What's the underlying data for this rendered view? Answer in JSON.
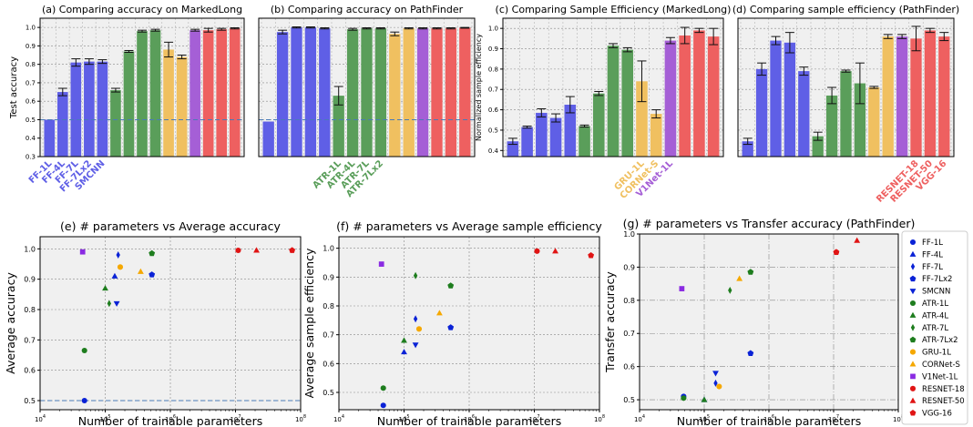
{
  "chart_data": [
    {
      "type": "bar",
      "title": "(a) Comparing accuracy on MarkedLong",
      "ylabel": "Test accuracy",
      "ylim": [
        0.3,
        1.05
      ],
      "yticks": [
        0.3,
        0.4,
        0.5,
        0.6,
        0.7,
        0.8,
        0.9,
        1.0
      ],
      "ytick_labels": [
        "0.3",
        "0.4",
        "0.5",
        "0.6",
        "0.7",
        "0.8",
        "0.9",
        "1.0"
      ],
      "reference_line": 0.5,
      "grid": true,
      "bars": [
        {
          "value": 0.5,
          "err": 0.0,
          "group": "FF"
        },
        {
          "value": 0.65,
          "err": 0.02,
          "group": "FF"
        },
        {
          "value": 0.81,
          "err": 0.02,
          "group": "FF"
        },
        {
          "value": 0.815,
          "err": 0.015,
          "group": "FF"
        },
        {
          "value": 0.815,
          "err": 0.01,
          "group": "FF"
        },
        {
          "value": 0.66,
          "err": 0.01,
          "group": "ATR"
        },
        {
          "value": 0.87,
          "err": 0.005,
          "group": "ATR"
        },
        {
          "value": 0.98,
          "err": 0.005,
          "group": "ATR"
        },
        {
          "value": 0.985,
          "err": 0.005,
          "group": "ATR"
        },
        {
          "value": 0.88,
          "err": 0.04,
          "group": "GRU"
        },
        {
          "value": 0.84,
          "err": 0.01,
          "group": "GRU"
        },
        {
          "value": 0.985,
          "err": 0.005,
          "group": "V1"
        },
        {
          "value": 0.985,
          "err": 0.01,
          "group": "RES"
        },
        {
          "value": 0.99,
          "err": 0.005,
          "group": "RES"
        },
        {
          "value": 0.995,
          "err": 0.003,
          "group": "RES"
        }
      ],
      "tick_labels": [
        {
          "text": "FF-1L",
          "bar": 0,
          "group": "FF"
        },
        {
          "text": "FF-4L",
          "bar": 1,
          "group": "FF"
        },
        {
          "text": "FF-7L",
          "bar": 2,
          "group": "FF"
        },
        {
          "text": "FF-7Lx2",
          "bar": 3,
          "group": "FF"
        },
        {
          "text": "SMCNN",
          "bar": 4,
          "group": "FF"
        }
      ]
    },
    {
      "type": "bar",
      "title": "(b) Comparing accuracy on PathFinder",
      "ylim": [
        0.3,
        1.05
      ],
      "reference_line": 0.5,
      "grid": true,
      "bars": [
        {
          "value": 0.49,
          "err": 0.0,
          "group": "FF"
        },
        {
          "value": 0.975,
          "err": 0.01,
          "group": "FF"
        },
        {
          "value": 1.0,
          "err": 0.003,
          "group": "FF"
        },
        {
          "value": 1.0,
          "err": 0.003,
          "group": "FF"
        },
        {
          "value": 0.995,
          "err": 0.003,
          "group": "FF"
        },
        {
          "value": 0.63,
          "err": 0.05,
          "group": "ATR"
        },
        {
          "value": 0.99,
          "err": 0.005,
          "group": "ATR"
        },
        {
          "value": 0.995,
          "err": 0.003,
          "group": "ATR"
        },
        {
          "value": 0.995,
          "err": 0.003,
          "group": "ATR"
        },
        {
          "value": 0.965,
          "err": 0.01,
          "group": "GRU"
        },
        {
          "value": 0.995,
          "err": 0.003,
          "group": "GRU"
        },
        {
          "value": 0.995,
          "err": 0.003,
          "group": "V1"
        },
        {
          "value": 0.995,
          "err": 0.003,
          "group": "RES"
        },
        {
          "value": 0.995,
          "err": 0.003,
          "group": "RES"
        },
        {
          "value": 0.998,
          "err": 0.002,
          "group": "RES"
        }
      ],
      "tick_labels": [
        {
          "text": "ATR-1L",
          "bar": 5,
          "group": "ATR"
        },
        {
          "text": "ATR-4L",
          "bar": 6,
          "group": "ATR"
        },
        {
          "text": "ATR-7L",
          "bar": 7,
          "group": "ATR"
        },
        {
          "text": "ATR-7Lx2",
          "bar": 8,
          "group": "ATR"
        }
      ]
    },
    {
      "type": "bar",
      "title": "(c) Comparing Sample Efficiency (MarkedLong)",
      "ylabel": "Normalized sample efficiency",
      "ylim": [
        0.37,
        1.05
      ],
      "yticks": [
        0.4,
        0.5,
        0.6,
        0.7,
        0.8,
        0.9,
        1.0
      ],
      "ytick_labels": [
        "0.4",
        "0.5",
        "0.6",
        "0.7",
        "0.8",
        "0.9",
        "1.0"
      ],
      "grid": true,
      "bars": [
        {
          "value": 0.445,
          "err": 0.015,
          "group": "FF"
        },
        {
          "value": 0.515,
          "err": 0.005,
          "group": "FF"
        },
        {
          "value": 0.585,
          "err": 0.02,
          "group": "FF"
        },
        {
          "value": 0.56,
          "err": 0.02,
          "group": "FF"
        },
        {
          "value": 0.625,
          "err": 0.04,
          "group": "FF"
        },
        {
          "value": 0.52,
          "err": 0.005,
          "group": "ATR"
        },
        {
          "value": 0.68,
          "err": 0.01,
          "group": "ATR"
        },
        {
          "value": 0.915,
          "err": 0.01,
          "group": "ATR"
        },
        {
          "value": 0.895,
          "err": 0.01,
          "group": "ATR"
        },
        {
          "value": 0.74,
          "err": 0.1,
          "group": "GRU"
        },
        {
          "value": 0.58,
          "err": 0.02,
          "group": "GRU"
        },
        {
          "value": 0.94,
          "err": 0.015,
          "group": "V1"
        },
        {
          "value": 0.965,
          "err": 0.04,
          "group": "RES"
        },
        {
          "value": 0.99,
          "err": 0.01,
          "group": "RES"
        },
        {
          "value": 0.96,
          "err": 0.04,
          "group": "RES"
        }
      ],
      "tick_labels": [
        {
          "text": "GRU-1L",
          "bar": 9,
          "group": "GRU"
        },
        {
          "text": "CORNet-S",
          "bar": 10,
          "group": "GRU"
        },
        {
          "text": "V1Net-1L",
          "bar": 11,
          "group": "V1"
        }
      ]
    },
    {
      "type": "bar",
      "title": "(d) Comparing sample efficiency (PathFinder)",
      "ylim": [
        0.37,
        1.05
      ],
      "grid": true,
      "bars": [
        {
          "value": 0.445,
          "err": 0.015,
          "group": "FF"
        },
        {
          "value": 0.8,
          "err": 0.03,
          "group": "FF"
        },
        {
          "value": 0.94,
          "err": 0.02,
          "group": "FF"
        },
        {
          "value": 0.93,
          "err": 0.05,
          "group": "FF"
        },
        {
          "value": 0.79,
          "err": 0.02,
          "group": "FF"
        },
        {
          "value": 0.47,
          "err": 0.02,
          "group": "ATR"
        },
        {
          "value": 0.67,
          "err": 0.04,
          "group": "ATR"
        },
        {
          "value": 0.79,
          "err": 0.005,
          "group": "ATR"
        },
        {
          "value": 0.73,
          "err": 0.1,
          "group": "ATR"
        },
        {
          "value": 0.71,
          "err": 0.005,
          "group": "GRU"
        },
        {
          "value": 0.96,
          "err": 0.01,
          "group": "GRU"
        },
        {
          "value": 0.96,
          "err": 0.01,
          "group": "V1"
        },
        {
          "value": 0.95,
          "err": 0.06,
          "group": "RES"
        },
        {
          "value": 0.99,
          "err": 0.01,
          "group": "RES"
        },
        {
          "value": 0.96,
          "err": 0.02,
          "group": "RES"
        }
      ],
      "tick_labels": [
        {
          "text": "RESNET-18",
          "bar": 12,
          "group": "RES"
        },
        {
          "text": "RESNET-50",
          "bar": 13,
          "group": "RES"
        },
        {
          "text": "VGG-16",
          "bar": 14,
          "group": "RES"
        }
      ]
    },
    {
      "type": "scatter",
      "title": "(e) # parameters vs Average accuracy",
      "xlabel": "Number of trainable parameters",
      "ylabel": "Average accuracy",
      "xscale": "log",
      "xlim": [
        10000,
        100000000
      ],
      "ylim": [
        0.47,
        1.04
      ],
      "yticks": [
        0.5,
        0.6,
        0.7,
        0.8,
        0.9,
        1.0
      ],
      "ytick_labels": [
        "0.5",
        "0.6",
        "0.7",
        "0.8",
        "0.9",
        "1.0"
      ],
      "reference_line": 0.5,
      "grid": true,
      "points": [
        {
          "model": 0,
          "x": 48000,
          "y": 0.5
        },
        {
          "model": 1,
          "x": 140000,
          "y": 0.91
        },
        {
          "model": 2,
          "x": 158000,
          "y": 0.98
        },
        {
          "model": 3,
          "x": 520000,
          "y": 0.915
        },
        {
          "model": 4,
          "x": 150000,
          "y": 0.82
        },
        {
          "model": 5,
          "x": 48000,
          "y": 0.665
        },
        {
          "model": 6,
          "x": 100000,
          "y": 0.87
        },
        {
          "model": 7,
          "x": 115000,
          "y": 0.82
        },
        {
          "model": 8,
          "x": 520000,
          "y": 0.985
        },
        {
          "model": 9,
          "x": 170000,
          "y": 0.94
        },
        {
          "model": 10,
          "x": 350000,
          "y": 0.925
        },
        {
          "model": 11,
          "x": 45000,
          "y": 0.99
        },
        {
          "model": 12,
          "x": 11000000,
          "y": 0.995
        },
        {
          "model": 13,
          "x": 21000000,
          "y": 0.995
        },
        {
          "model": 14,
          "x": 74000000,
          "y": 0.995
        }
      ]
    },
    {
      "type": "scatter",
      "title": "(f) # parameters vs Average sample efficiency",
      "xlabel": "Number of trainable parameters",
      "ylabel": "Average sample efficiency",
      "xscale": "log",
      "xlim": [
        10000,
        100000000
      ],
      "ylim": [
        0.44,
        1.04
      ],
      "yticks": [
        0.5,
        0.6,
        0.7,
        0.8,
        0.9,
        1.0
      ],
      "ytick_labels": [
        "0.5",
        "0.6",
        "0.7",
        "0.8",
        "0.9",
        "1.0"
      ],
      "grid": true,
      "points": [
        {
          "model": 0,
          "x": 48000,
          "y": 0.455
        },
        {
          "model": 1,
          "x": 100000,
          "y": 0.64
        },
        {
          "model": 2,
          "x": 150000,
          "y": 0.755
        },
        {
          "model": 3,
          "x": 520000,
          "y": 0.725
        },
        {
          "model": 4,
          "x": 150000,
          "y": 0.665
        },
        {
          "model": 5,
          "x": 48000,
          "y": 0.515
        },
        {
          "model": 6,
          "x": 100000,
          "y": 0.68
        },
        {
          "model": 7,
          "x": 150000,
          "y": 0.905
        },
        {
          "model": 8,
          "x": 520000,
          "y": 0.87
        },
        {
          "model": 9,
          "x": 170000,
          "y": 0.72
        },
        {
          "model": 10,
          "x": 350000,
          "y": 0.775
        },
        {
          "model": 11,
          "x": 45000,
          "y": 0.945
        },
        {
          "model": 12,
          "x": 11000000,
          "y": 0.99
        },
        {
          "model": 13,
          "x": 21000000,
          "y": 0.99
        },
        {
          "model": 14,
          "x": 74000000,
          "y": 0.975
        }
      ]
    },
    {
      "type": "scatter",
      "title": "(g) # parameters vs Transfer accuracy (PathFinder)",
      "xlabel": "Number of trainable parameters",
      "ylabel": "Transfer accuracy",
      "xscale": "log",
      "xlim": [
        10000,
        100000000
      ],
      "ylim": [
        0.47,
        1.0
      ],
      "yticks": [
        0.5,
        0.6,
        0.7,
        0.8,
        0.9,
        1.0
      ],
      "ytick_labels": [
        "0.5",
        "0.6",
        "0.7",
        "0.8",
        "0.9",
        "1.0"
      ],
      "grid": true,
      "points": [
        {
          "model": 0,
          "x": 48000,
          "y": 0.51
        },
        {
          "model": 1,
          "x": 100000,
          "y": 0.5
        },
        {
          "model": 2,
          "x": 150000,
          "y": 0.55
        },
        {
          "model": 3,
          "x": 520000,
          "y": 0.64
        },
        {
          "model": 4,
          "x": 150000,
          "y": 0.58
        },
        {
          "model": 5,
          "x": 48000,
          "y": 0.505
        },
        {
          "model": 6,
          "x": 100000,
          "y": 0.5
        },
        {
          "model": 7,
          "x": 250000,
          "y": 0.83
        },
        {
          "model": 8,
          "x": 520000,
          "y": 0.885
        },
        {
          "model": 9,
          "x": 170000,
          "y": 0.54
        },
        {
          "model": 10,
          "x": 350000,
          "y": 0.865
        },
        {
          "model": 11,
          "x": 45000,
          "y": 0.835
        },
        {
          "model": 12,
          "x": 11000000,
          "y": 0.945
        },
        {
          "model": 13,
          "x": 23000000,
          "y": 0.98
        },
        {
          "model": 14,
          "x": 11000000,
          "y": 0.945
        }
      ]
    }
  ],
  "colors": {
    "FF": "#5f5fe6",
    "ATR": "#5a9e5a",
    "GRU": "#f0c060",
    "V1": "#a55fd6",
    "RES": "#ee6060"
  },
  "legend": [
    {
      "label": "FF-1L",
      "color": "#0a22d6",
      "marker": "circle"
    },
    {
      "label": "FF-4L",
      "color": "#0a22d6",
      "marker": "triangle-up"
    },
    {
      "label": "FF-7L",
      "color": "#0a22d6",
      "marker": "diamond"
    },
    {
      "label": "FF-7Lx2",
      "color": "#0a22d6",
      "marker": "pentagon"
    },
    {
      "label": "SMCNN",
      "color": "#0a22d6",
      "marker": "triangle-down"
    },
    {
      "label": "ATR-1L",
      "color": "#1e7d1e",
      "marker": "circle"
    },
    {
      "label": "ATR-4L",
      "color": "#1e7d1e",
      "marker": "triangle-up"
    },
    {
      "label": "ATR-7L",
      "color": "#1e7d1e",
      "marker": "diamond"
    },
    {
      "label": "ATR-7Lx2",
      "color": "#1e7d1e",
      "marker": "pentagon"
    },
    {
      "label": "GRU-1L",
      "color": "#f5a800",
      "marker": "circle"
    },
    {
      "label": "CORNet-S",
      "color": "#f5a800",
      "marker": "triangle-up"
    },
    {
      "label": "V1Net-1L",
      "color": "#8a2be2",
      "marker": "square"
    },
    {
      "label": "RESNET-18",
      "color": "#e01414",
      "marker": "circle"
    },
    {
      "label": "RESNET-50",
      "color": "#e01414",
      "marker": "triangle-up"
    },
    {
      "label": "VGG-16",
      "color": "#e01414",
      "marker": "pentagon"
    }
  ]
}
